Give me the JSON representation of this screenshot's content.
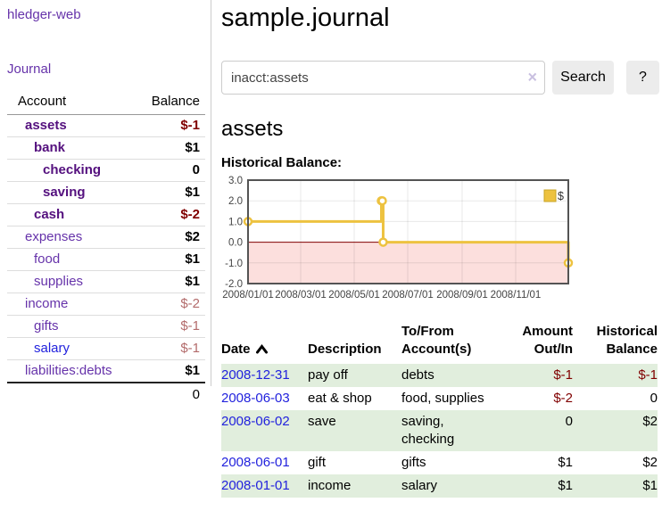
{
  "colors": {
    "purple_link": "#6633aa",
    "purple_bold": "#54107e",
    "blue_link": "#2222dd",
    "negative": "#800000",
    "negative_muted": "#b36b6b",
    "stripe_green": "#e1eedd",
    "chart_series": "#edc240",
    "chart_border": "#545454",
    "divider": "#cccccc",
    "button_bg": "#ececec"
  },
  "sidebar": {
    "brand": "hledger-web",
    "journal_link": "Journal",
    "accounts": {
      "col_account": "Account",
      "col_balance": "Balance",
      "rows": [
        {
          "name": "assets",
          "balance": "$-1"
        },
        {
          "name": "bank",
          "balance": "$1"
        },
        {
          "name": "checking",
          "balance": "0"
        },
        {
          "name": "saving",
          "balance": "$1"
        },
        {
          "name": "cash",
          "balance": "$-2"
        },
        {
          "name": "expenses",
          "balance": "$2"
        },
        {
          "name": "food",
          "balance": "$1"
        },
        {
          "name": "supplies",
          "balance": "$1"
        },
        {
          "name": "income",
          "balance": "$-2"
        },
        {
          "name": "gifts",
          "balance": "$-1"
        },
        {
          "name": "salary",
          "balance": "$-1"
        },
        {
          "name": "liabilities:debts",
          "balance": "$1"
        }
      ],
      "total": "0"
    }
  },
  "header": {
    "title": "sample.journal"
  },
  "search": {
    "value": "inacct:assets",
    "clear_icon": "×",
    "button_label": "Search",
    "help_label": "?"
  },
  "account": {
    "title": "assets",
    "chart_label": "Historical Balance:"
  },
  "chart_data": {
    "type": "line",
    "step": true,
    "title": "Historical Balance of assets",
    "series": [
      {
        "name": "$",
        "color": "#edc240",
        "points": [
          [
            "2008-01-01",
            1
          ],
          [
            "2008-06-01",
            2
          ],
          [
            "2008-06-02",
            2
          ],
          [
            "2008-06-03",
            0
          ],
          [
            "2008-12-31",
            -1
          ]
        ]
      }
    ],
    "x_ticks": [
      "2008/01/01",
      "2008/03/01",
      "2008/05/01",
      "2008/07/01",
      "2008/09/01",
      "2008/11/01"
    ],
    "y_ticks": [
      3.0,
      2.0,
      1.0,
      0.0,
      -1.0,
      -2.0
    ],
    "xlim": [
      "2008-01-01",
      "2008-12-31"
    ],
    "ylim": [
      -2,
      3
    ],
    "grid": true,
    "legend": {
      "label": "$",
      "position": "top-right"
    },
    "zero_line_color": "#800000",
    "negative_region_color": "#fcdfdd"
  },
  "register": {
    "sort": "ascending",
    "headers": {
      "date": "Date",
      "description": "Description",
      "tofrom_line1": "To/From",
      "tofrom_line2": "Account(s)",
      "amount_line1": "Amount",
      "amount_line2": "Out/In",
      "balance_line1": "Historical",
      "balance_line2": "Balance"
    },
    "rows": [
      {
        "date": "2008-12-31",
        "description": "pay off",
        "accounts": "debts",
        "amount": "$-1",
        "balance": "$-1"
      },
      {
        "date": "2008-06-03",
        "description": "eat & shop",
        "accounts": "food, supplies",
        "amount": "$-2",
        "balance": "0"
      },
      {
        "date": "2008-06-02",
        "description": "save",
        "accounts": "saving, checking",
        "amount": "0",
        "balance": "$2"
      },
      {
        "date": "2008-06-01",
        "description": "gift",
        "accounts": "gifts",
        "amount": "$1",
        "balance": "$2"
      },
      {
        "date": "2008-01-01",
        "description": "income",
        "accounts": "salary",
        "amount": "$1",
        "balance": "$1"
      }
    ]
  }
}
